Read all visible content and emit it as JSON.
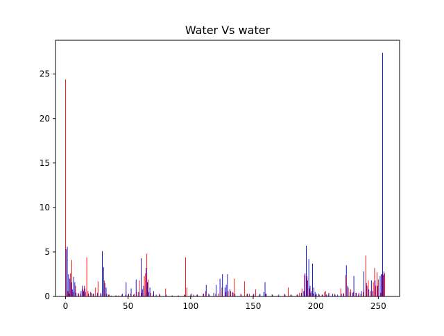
{
  "chart_data": {
    "type": "bar",
    "title": "Water Vs water",
    "xlabel": "",
    "ylabel": "",
    "xlim": [
      -8,
      267
    ],
    "ylim": [
      0,
      28.8
    ],
    "x_ticks": [
      0,
      50,
      100,
      150,
      200,
      250
    ],
    "y_ticks": [
      0,
      5,
      10,
      15,
      20,
      25
    ],
    "grid": false,
    "legend": "none",
    "bar_width": 0.5,
    "series": [
      {
        "color": "#ff0000",
        "offset": 0,
        "points": [
          [
            0,
            24.4
          ],
          [
            2,
            0.6
          ],
          [
            3,
            0.3
          ],
          [
            4,
            2.6
          ],
          [
            5,
            4.1
          ],
          [
            6,
            0.5
          ],
          [
            8,
            1.2
          ],
          [
            10,
            0.4
          ],
          [
            12,
            0.3
          ],
          [
            14,
            0.8
          ],
          [
            15,
            1.2
          ],
          [
            16,
            0.5
          ],
          [
            17,
            4.4
          ],
          [
            18,
            0.6
          ],
          [
            20,
            0.5
          ],
          [
            22,
            0.3
          ],
          [
            24,
            1.0
          ],
          [
            26,
            1.7
          ],
          [
            28,
            0.4
          ],
          [
            31,
            1.8
          ],
          [
            33,
            0.3
          ],
          [
            35,
            0.2
          ],
          [
            40,
            0.1
          ],
          [
            45,
            0.2
          ],
          [
            48,
            0.2
          ],
          [
            50,
            0.2
          ],
          [
            52,
            0.3
          ],
          [
            55,
            0.3
          ],
          [
            57,
            0.5
          ],
          [
            59,
            1.8
          ],
          [
            61,
            0.4
          ],
          [
            63,
            2.3
          ],
          [
            64,
            2.6
          ],
          [
            65,
            4.8
          ],
          [
            66,
            1.9
          ],
          [
            68,
            0.4
          ],
          [
            70,
            0.2
          ],
          [
            75,
            0.3
          ],
          [
            80,
            0.9
          ],
          [
            85,
            0.1
          ],
          [
            90,
            0.1
          ],
          [
            95,
            0.2
          ],
          [
            96,
            4.4
          ],
          [
            97,
            1.0
          ],
          [
            100,
            0.2
          ],
          [
            105,
            0.2
          ],
          [
            110,
            0.3
          ],
          [
            112,
            0.6
          ],
          [
            115,
            0.2
          ],
          [
            120,
            0.3
          ],
          [
            122,
            0.3
          ],
          [
            125,
            1.0
          ],
          [
            128,
            0.5
          ],
          [
            130,
            0.6
          ],
          [
            132,
            0.6
          ],
          [
            134,
            0.4
          ],
          [
            135,
            2.0
          ],
          [
            140,
            0.3
          ],
          [
            143,
            1.7
          ],
          [
            145,
            0.3
          ],
          [
            147,
            0.3
          ],
          [
            150,
            0.2
          ],
          [
            152,
            0.8
          ],
          [
            155,
            0.2
          ],
          [
            160,
            0.3
          ],
          [
            165,
            0.2
          ],
          [
            170,
            0.1
          ],
          [
            175,
            0.3
          ],
          [
            178,
            1.0
          ],
          [
            180,
            0.2
          ],
          [
            185,
            0.2
          ],
          [
            187,
            0.4
          ],
          [
            189,
            0.9
          ],
          [
            191,
            2.4
          ],
          [
            193,
            2.3
          ],
          [
            195,
            0.9
          ],
          [
            196,
            0.4
          ],
          [
            198,
            0.3
          ],
          [
            200,
            0.2
          ],
          [
            203,
            0.2
          ],
          [
            205,
            0.2
          ],
          [
            207,
            0.5
          ],
          [
            208,
            0.6
          ],
          [
            210,
            0.2
          ],
          [
            215,
            0.3
          ],
          [
            220,
            0.9
          ],
          [
            222,
            0.4
          ],
          [
            224,
            2.4
          ],
          [
            226,
            1.0
          ],
          [
            228,
            0.8
          ],
          [
            230,
            0.5
          ],
          [
            232,
            0.4
          ],
          [
            234,
            0.2
          ],
          [
            236,
            0.3
          ],
          [
            238,
            0.5
          ],
          [
            240,
            4.6
          ],
          [
            241,
            1.2
          ],
          [
            242,
            1.8
          ],
          [
            244,
            0.6
          ],
          [
            246,
            1.6
          ],
          [
            247,
            3.2
          ],
          [
            248,
            1.2
          ],
          [
            249,
            2.7
          ],
          [
            250,
            1.9
          ],
          [
            252,
            0.4
          ],
          [
            253,
            2.5
          ],
          [
            254,
            2.4
          ],
          [
            255,
            2.6
          ]
        ]
      },
      {
        "color": "#0000cc",
        "offset": 0.45,
        "points": [
          [
            0,
            5.3
          ],
          [
            1,
            5.6
          ],
          [
            2,
            2.5
          ],
          [
            3,
            2.0
          ],
          [
            4,
            1.6
          ],
          [
            5,
            0.8
          ],
          [
            6,
            2.2
          ],
          [
            7,
            1.6
          ],
          [
            8,
            0.4
          ],
          [
            10,
            0.3
          ],
          [
            12,
            0.6
          ],
          [
            13,
            1.2
          ],
          [
            14,
            0.6
          ],
          [
            15,
            0.9
          ],
          [
            18,
            0.3
          ],
          [
            20,
            0.4
          ],
          [
            22,
            0.3
          ],
          [
            25,
            0.4
          ],
          [
            28,
            0.3
          ],
          [
            29,
            5.1
          ],
          [
            30,
            3.3
          ],
          [
            31,
            1.5
          ],
          [
            32,
            1.0
          ],
          [
            34,
            0.2
          ],
          [
            36,
            0.1
          ],
          [
            40,
            0.1
          ],
          [
            42,
            0.1
          ],
          [
            45,
            0.3
          ],
          [
            48,
            1.6
          ],
          [
            50,
            0.3
          ],
          [
            52,
            0.9
          ],
          [
            54,
            0.2
          ],
          [
            56,
            1.9
          ],
          [
            58,
            0.5
          ],
          [
            60,
            4.3
          ],
          [
            61,
            0.8
          ],
          [
            62,
            1.2
          ],
          [
            64,
            3.2
          ],
          [
            65,
            1.6
          ],
          [
            66,
            0.5
          ],
          [
            67,
            1.0
          ],
          [
            70,
            0.6
          ],
          [
            72,
            0.2
          ],
          [
            75,
            0.2
          ],
          [
            80,
            0.2
          ],
          [
            85,
            0.1
          ],
          [
            90,
            0.1
          ],
          [
            95,
            0.2
          ],
          [
            100,
            0.3
          ],
          [
            102,
            0.2
          ],
          [
            105,
            0.2
          ],
          [
            110,
            0.3
          ],
          [
            112,
            1.3
          ],
          [
            114,
            0.3
          ],
          [
            118,
            0.4
          ],
          [
            120,
            1.3
          ],
          [
            123,
            2.0
          ],
          [
            125,
            2.5
          ],
          [
            127,
            1.0
          ],
          [
            128,
            1.3
          ],
          [
            129,
            2.5
          ],
          [
            131,
            0.8
          ],
          [
            133,
            0.5
          ],
          [
            135,
            0.3
          ],
          [
            140,
            0.2
          ],
          [
            145,
            0.3
          ],
          [
            150,
            0.3
          ],
          [
            155,
            0.3
          ],
          [
            158,
            0.5
          ],
          [
            159,
            1.6
          ],
          [
            160,
            0.3
          ],
          [
            165,
            0.2
          ],
          [
            170,
            0.2
          ],
          [
            175,
            0.2
          ],
          [
            180,
            0.2
          ],
          [
            185,
            0.2
          ],
          [
            188,
            0.4
          ],
          [
            190,
            0.6
          ],
          [
            191,
            2.6
          ],
          [
            192,
            5.7
          ],
          [
            193,
            1.8
          ],
          [
            194,
            4.2
          ],
          [
            195,
            1.2
          ],
          [
            196,
            0.6
          ],
          [
            197,
            3.7
          ],
          [
            198,
            1.0
          ],
          [
            199,
            0.5
          ],
          [
            200,
            0.3
          ],
          [
            202,
            0.3
          ],
          [
            205,
            0.2
          ],
          [
            208,
            0.2
          ],
          [
            210,
            0.4
          ],
          [
            213,
            0.3
          ],
          [
            215,
            0.2
          ],
          [
            217,
            0.2
          ],
          [
            220,
            0.3
          ],
          [
            222,
            0.3
          ],
          [
            224,
            3.5
          ],
          [
            225,
            1.2
          ],
          [
            227,
            0.5
          ],
          [
            229,
            0.4
          ],
          [
            230,
            2.3
          ],
          [
            232,
            0.4
          ],
          [
            234,
            0.4
          ],
          [
            236,
            0.6
          ],
          [
            238,
            2.8
          ],
          [
            240,
            1.5
          ],
          [
            242,
            0.8
          ],
          [
            244,
            1.8
          ],
          [
            245,
            0.6
          ],
          [
            247,
            1.8
          ],
          [
            249,
            1.2
          ],
          [
            251,
            2.3
          ],
          [
            252,
            2.5
          ],
          [
            253,
            27.4
          ],
          [
            254,
            2.8
          ]
        ]
      }
    ]
  }
}
